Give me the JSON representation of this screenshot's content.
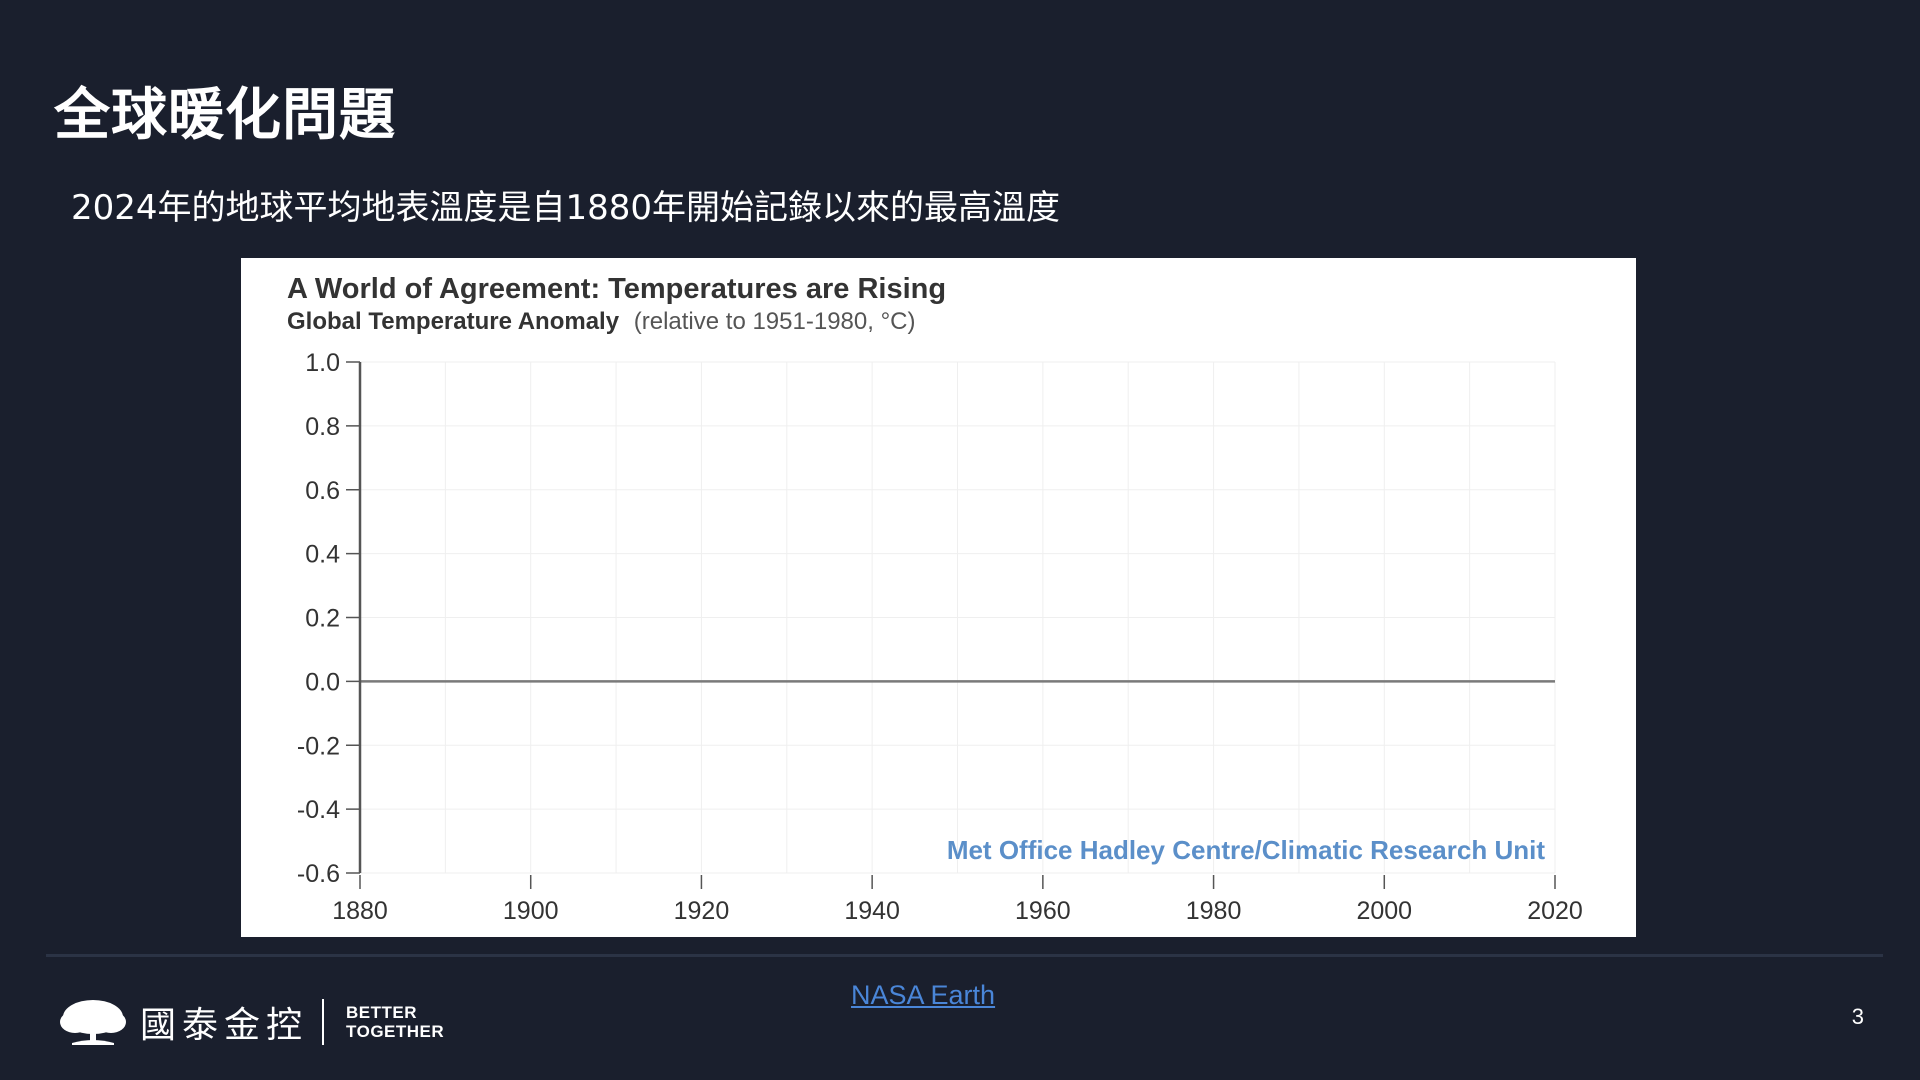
{
  "slide": {
    "title": "全球暖化問題",
    "subtitle": "2024年的地球平均地表溫度是自1880年開始記錄以來的最高溫度",
    "page_number": "3"
  },
  "footer": {
    "brand_name": "國泰金控",
    "tagline_line1": "BETTER",
    "tagline_line2": "TOGETHER",
    "source_link": "NASA Earth"
  },
  "chart_data": {
    "type": "line",
    "title": "A World of Agreement: Temperatures are Rising",
    "subtitle_bold": "Global Temperature Anomaly",
    "subtitle_note": "(relative to 1951-1980, °C)",
    "source_label": "Met Office Hadley Centre/Climatic Research Unit",
    "xlim": [
      1880,
      2020
    ],
    "ylim": [
      -0.6,
      1.0
    ],
    "x_ticks": [
      "1880",
      "1900",
      "1920",
      "1940",
      "1960",
      "1980",
      "2000",
      "2020"
    ],
    "y_ticks": [
      "1.0",
      "0.8",
      "0.6",
      "0.4",
      "0.2",
      "0.0",
      "-0.2",
      "-0.4",
      "-0.6"
    ],
    "x_tick_values": [
      1880,
      1900,
      1920,
      1940,
      1960,
      1980,
      2000,
      2020
    ],
    "y_tick_values": [
      1.0,
      0.8,
      0.6,
      0.4,
      0.2,
      0.0,
      -0.2,
      -0.4,
      -0.6
    ],
    "baseline": 0.0,
    "grid": true,
    "series": [],
    "colors": {
      "baseline": "#7a7a7a",
      "axis": "#555555",
      "grid": "#efefef",
      "source_label": "#5b8fc9",
      "title": "#333333"
    }
  }
}
